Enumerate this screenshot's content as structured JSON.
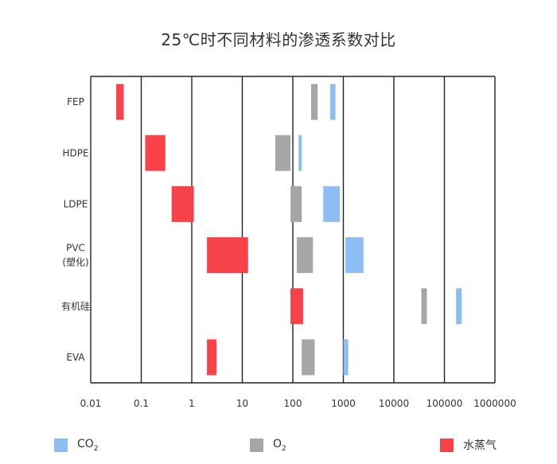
{
  "chart_data": {
    "type": "bar",
    "title": "25℃时不同材料的渗透系数对比",
    "xscale": "log",
    "xlim": [
      0.01,
      1000000
    ],
    "xticks": [
      "0.01",
      "0.1",
      "1",
      "10",
      "100",
      "1000",
      "10000",
      "100000",
      "1000000"
    ],
    "grid": "vertical",
    "legend_position": "bottom",
    "categories": [
      "FEP",
      "HDPE",
      "LDPE",
      "PVC\n(塑化)",
      "有机硅",
      "EVA"
    ],
    "series": [
      {
        "name": "CO₂",
        "color": "#8dbdf5",
        "ranges": [
          [
            550,
            700
          ],
          [
            130,
            150
          ],
          [
            400,
            850
          ],
          [
            1100,
            2500
          ],
          [
            170000,
            220000
          ],
          [
            1000,
            1250
          ]
        ]
      },
      {
        "name": "O₂",
        "color": "#a6a6a9",
        "ranges": [
          [
            230,
            310
          ],
          [
            45,
            90
          ],
          [
            90,
            150
          ],
          [
            120,
            250
          ],
          [
            35000,
            45000
          ],
          [
            150,
            270
          ]
        ]
      },
      {
        "name": "水蒸气",
        "color": "#f64248",
        "ranges": [
          [
            0.032,
            0.045
          ],
          [
            0.12,
            0.3
          ],
          [
            0.4,
            1.1
          ],
          [
            2,
            13
          ],
          [
            90,
            160
          ],
          [
            2,
            3.1
          ]
        ]
      }
    ]
  },
  "legend": {
    "co2_label": "CO",
    "co2_sub": "2",
    "o2_label": "O",
    "o2_sub": "2",
    "h2o_label": "水蒸气"
  }
}
